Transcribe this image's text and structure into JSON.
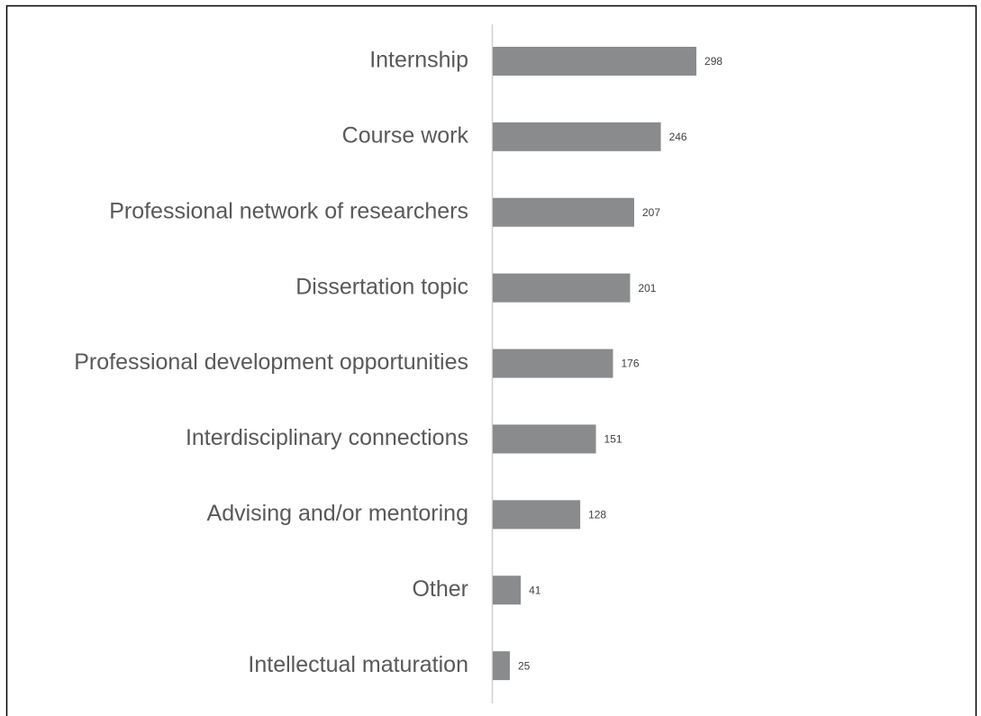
{
  "chart_data": {
    "type": "bar",
    "orientation": "horizontal",
    "categories": [
      "Internship",
      "Course work",
      "Professional network of researchers",
      "Dissertation topic",
      "Professional development opportunities",
      "Interdisciplinary connections",
      "Advising and/or mentoring",
      "Other",
      "Intellectual maturation"
    ],
    "values": [
      298,
      246,
      207,
      201,
      176,
      151,
      128,
      41,
      25
    ],
    "color": "#898b8d"
  }
}
